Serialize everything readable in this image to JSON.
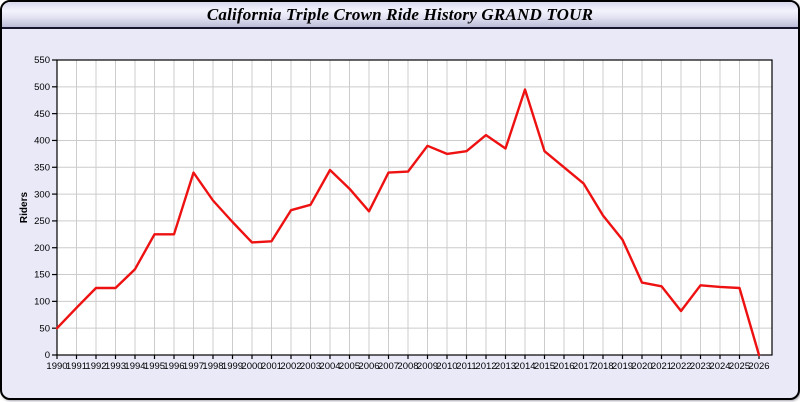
{
  "window": {
    "title": "California Triple Crown Ride History GRAND TOUR"
  },
  "chart_data": {
    "type": "line",
    "title": "California Triple Crown Ride History GRAND TOUR",
    "xlabel": "",
    "ylabel": "Riders",
    "ylim": [
      0,
      550
    ],
    "y_tick_step": 50,
    "grid": true,
    "legend": "none",
    "categories": [
      1990,
      1991,
      1992,
      1993,
      1994,
      1995,
      1996,
      1997,
      1998,
      1999,
      2000,
      2001,
      2002,
      2003,
      2004,
      2005,
      2006,
      2007,
      2008,
      2009,
      2010,
      2011,
      2012,
      2013,
      2014,
      2015,
      2016,
      2017,
      2018,
      2019,
      2020,
      2021,
      2022,
      2023,
      2024,
      2025,
      2026
    ],
    "series": [
      {
        "name": "Riders",
        "values": [
          50,
          88,
          125,
          125,
          160,
          225,
          225,
          340,
          288,
          248,
          210,
          212,
          270,
          280,
          345,
          310,
          268,
          340,
          342,
          390,
          375,
          380,
          410,
          385,
          495,
          380,
          350,
          320,
          260,
          215,
          135,
          128,
          82,
          130,
          127,
          125,
          0
        ]
      }
    ]
  },
  "colors": {
    "page_background": "#e9e9f8",
    "plot_background": "#ffffff",
    "gridline": "#cccccc",
    "axis": "#000000",
    "line": "#ee1111",
    "titlebar_border": "#16162e"
  }
}
